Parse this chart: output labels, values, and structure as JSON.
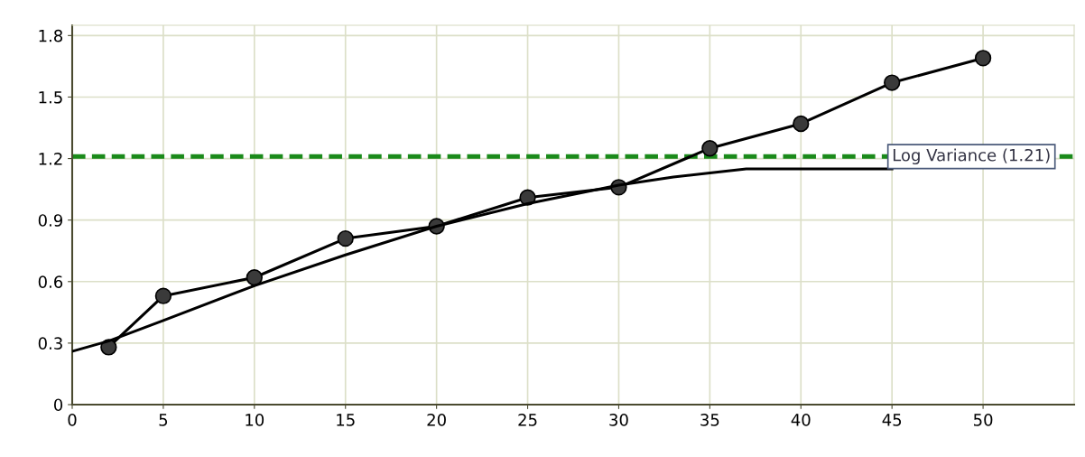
{
  "chart_data": {
    "type": "line",
    "series": [
      {
        "color": "#000000",
        "marker": "circle",
        "x": [
          2,
          5,
          10,
          15,
          20,
          25,
          30,
          35,
          40,
          45,
          50
        ],
        "values": [
          0.28,
          0.53,
          0.62,
          0.81,
          0.87,
          1.01,
          1.06,
          1.25,
          1.37,
          1.57,
          1.69
        ]
      },
      {
        "color": "#000000",
        "marker": "none",
        "x": [
          0,
          2,
          5,
          10,
          15,
          20,
          25,
          30,
          33,
          35,
          37,
          45
        ],
        "values": [
          0.26,
          0.31,
          0.41,
          0.58,
          0.73,
          0.87,
          0.98,
          1.07,
          1.11,
          1.13,
          1.15,
          1.15
        ]
      }
    ],
    "xlim": [
      0,
      55
    ],
    "ylim": [
      0,
      1.85
    ],
    "xticks": [
      0,
      5,
      10,
      15,
      20,
      25,
      30,
      35,
      40,
      45,
      50
    ],
    "yticks": [
      0,
      0.3,
      0.6,
      0.9,
      1.2,
      1.5,
      1.8
    ],
    "grid": true,
    "ref_lines": [
      {
        "axis": "y",
        "value": 1.21,
        "label": "Log Variance (1.21)",
        "color": "#1a8a1a",
        "line_style": "dashed"
      }
    ]
  }
}
